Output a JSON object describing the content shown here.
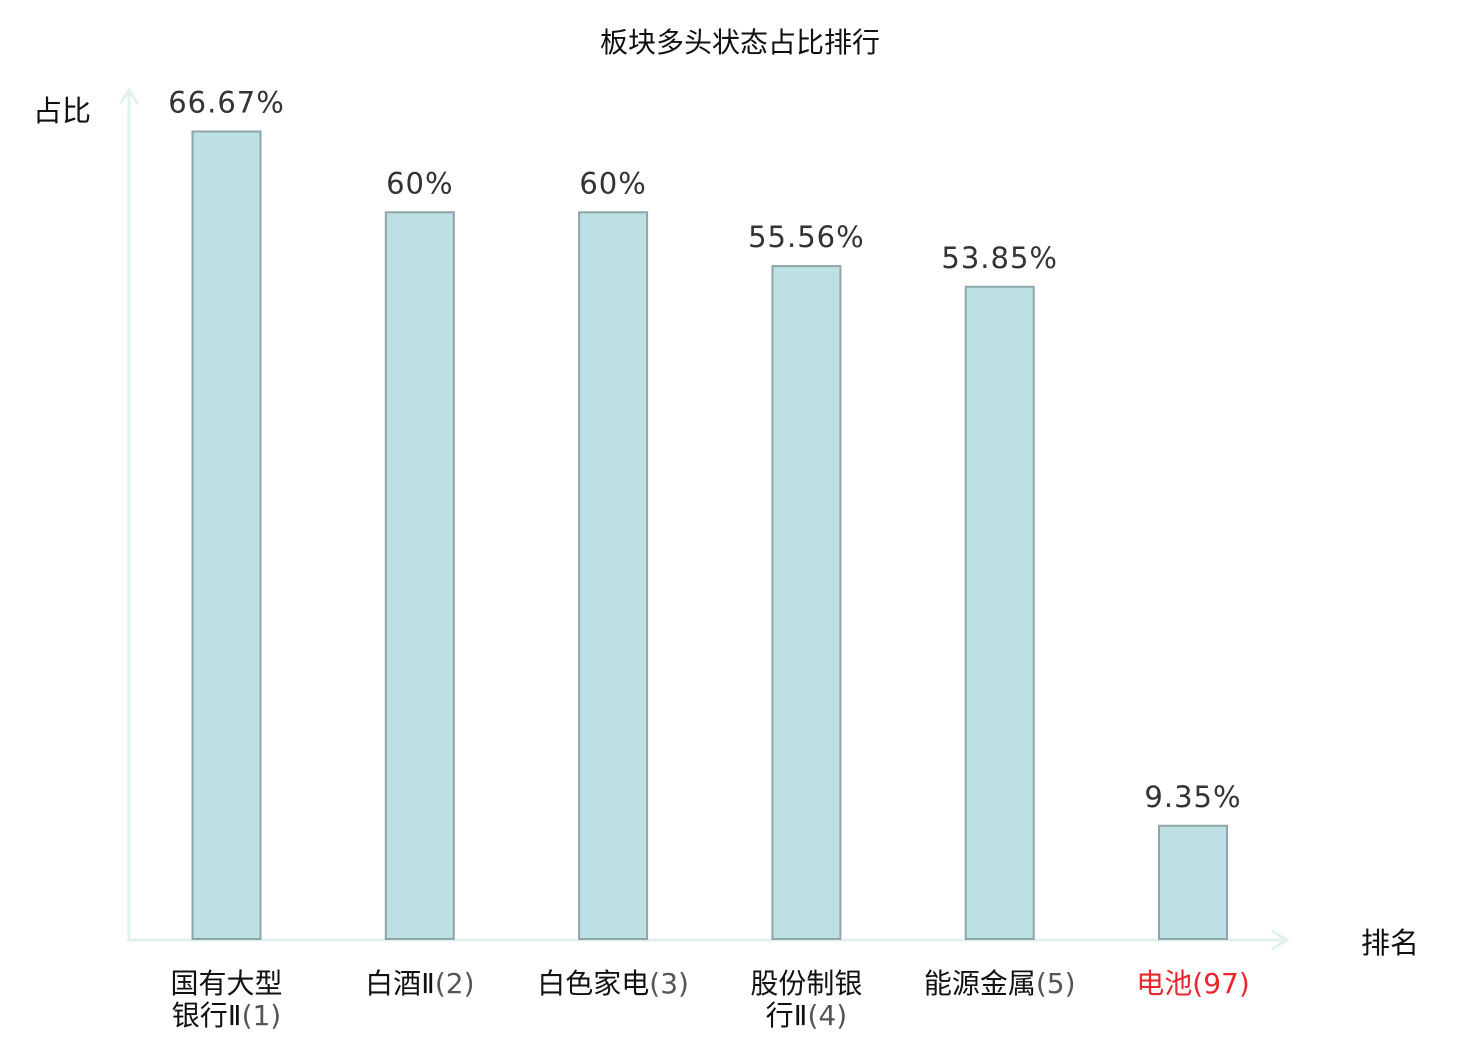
{
  "chart_data": {
    "type": "bar",
    "title": "板块多头状态占比排行",
    "ylabel": "占比",
    "xlabel": "排名",
    "ylim": [
      0,
      70
    ],
    "grid": false,
    "categories": [
      {
        "name_lines": [
          "国有大型",
          "银行Ⅱ"
        ],
        "rank": "(1)",
        "highlight": false
      },
      {
        "name_lines": [
          "白酒Ⅱ"
        ],
        "rank": "(2)",
        "highlight": false
      },
      {
        "name_lines": [
          "白色家电"
        ],
        "rank": "(3)",
        "highlight": false
      },
      {
        "name_lines": [
          "股份制银",
          "行Ⅱ"
        ],
        "rank": "(4)",
        "highlight": false
      },
      {
        "name_lines": [
          "能源金属"
        ],
        "rank": "(5)",
        "highlight": false
      },
      {
        "name_lines": [
          "电池"
        ],
        "rank": "(97)",
        "highlight": true
      }
    ],
    "values": [
      66.67,
      60,
      60,
      55.56,
      53.85,
      9.35
    ],
    "value_labels": [
      "66.67%",
      "60%",
      "60%",
      "55.56%",
      "53.85%",
      "9.35%"
    ],
    "colors": {
      "bar_fill": "#bce0e3",
      "bar_stroke": "#8fa6a8",
      "axis": "#e0f1ef",
      "highlight_label": "#e8262b"
    }
  }
}
